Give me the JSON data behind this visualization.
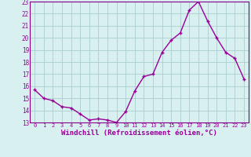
{
  "x": [
    0,
    1,
    2,
    3,
    4,
    5,
    6,
    7,
    8,
    9,
    10,
    11,
    12,
    13,
    14,
    15,
    16,
    17,
    18,
    19,
    20,
    21,
    22,
    23
  ],
  "y": [
    15.7,
    15.0,
    14.8,
    14.3,
    14.2,
    13.7,
    13.2,
    13.3,
    13.2,
    13.0,
    13.9,
    15.6,
    16.8,
    17.0,
    18.8,
    19.8,
    20.4,
    22.3,
    23.0,
    21.4,
    20.0,
    18.8,
    18.3,
    16.6
  ],
  "line_color": "#990099",
  "marker": "+",
  "marker_size": 3.5,
  "linewidth": 1.0,
  "xlabel": "Windchill (Refroidissement éolien,°C)",
  "xlabel_fontsize": 6.5,
  "ylim": [
    13,
    23
  ],
  "xlim": [
    -0.5,
    23.5
  ],
  "yticks": [
    13,
    14,
    15,
    16,
    17,
    18,
    19,
    20,
    21,
    22,
    23
  ],
  "xticks": [
    0,
    1,
    2,
    3,
    4,
    5,
    6,
    7,
    8,
    9,
    10,
    11,
    12,
    13,
    14,
    15,
    16,
    17,
    18,
    19,
    20,
    21,
    22,
    23
  ],
  "xtick_fontsize": 5.0,
  "ytick_fontsize": 5.5,
  "grid_color": "#aacece",
  "bg_color": "#d8f0f0",
  "spine_color": "#880088"
}
